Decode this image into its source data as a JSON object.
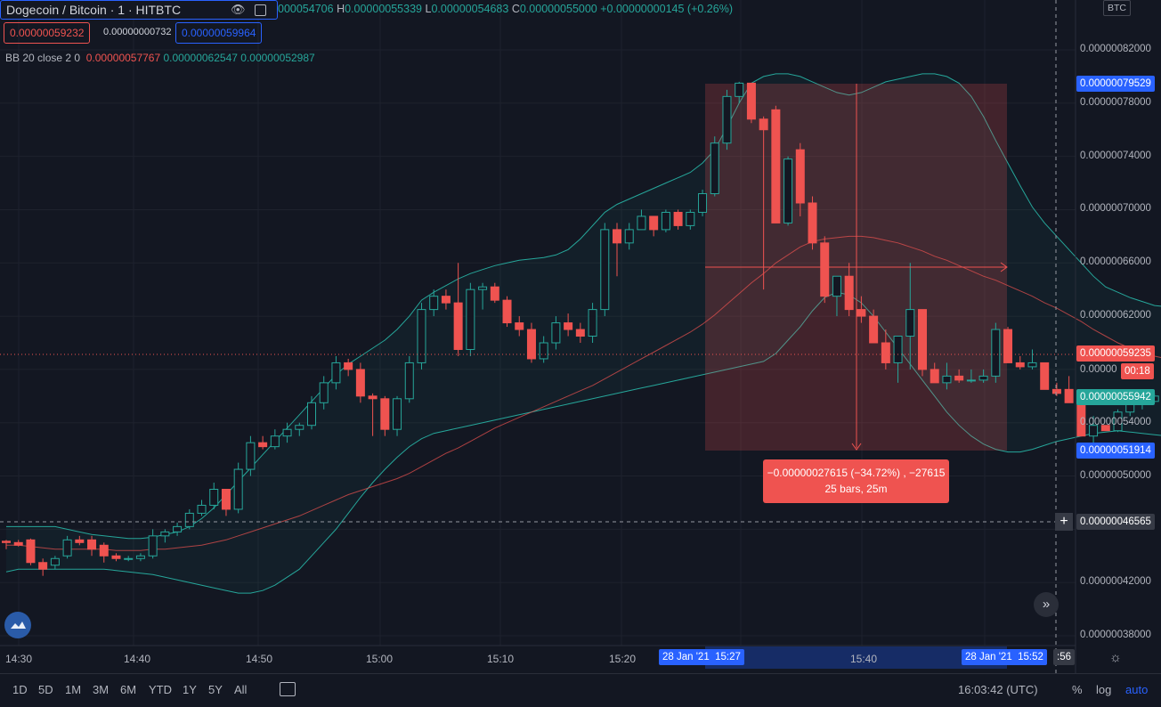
{
  "header": {
    "title": "Dogecoin / Bitcoin · 1 · HITBTC",
    "ohlc_prefix": "000054706",
    "h_label": "H",
    "h_value": "0.00000055339",
    "l_label": "L",
    "l_value": "0.00000054683",
    "c_label": "C",
    "c_value": "0.00000055000",
    "change": "+0.00000000145 (+0.26%)",
    "sell_price": "0.00000059232",
    "spread": "0.00000000732",
    "buy_price": "0.00000059964"
  },
  "indicator": {
    "label": "BB 20 close 2 0",
    "basis": "0.00000057767",
    "upper": "0.00000062547",
    "lower": "0.00000052987"
  },
  "colors": {
    "up": "#26a69a",
    "down": "#ef5350",
    "bg": "#131722",
    "grid": "#1e222d",
    "accent": "#2962ff"
  },
  "price_axis": {
    "currency": "BTC",
    "labels": [
      "0.00000082000",
      "0.00000078000",
      "0.00000074000",
      "0.00000070000",
      "0.00000066000",
      "0.00000062000",
      "0.00000054000",
      "0.00000050000",
      "0.00000042000",
      "0.00000038000"
    ],
    "tags": {
      "high": "0.00000079529",
      "last": "0.00000059235",
      "last_partial": "0.00000",
      "countdown": "00:18",
      "current": "0.00000055942",
      "low": "0.00000051914",
      "cursor": "0.00000046565"
    }
  },
  "time_axis": {
    "labels": [
      "14:30",
      "14:40",
      "14:50",
      "15:00",
      "15:10",
      "15:20",
      "15:40"
    ],
    "start_tag": "28 Jan '21  15:27",
    "end_tag": "28 Jan '21  15:52",
    "end_suffix": ":56"
  },
  "measure": {
    "line1": "−0.00000027615 (−34.72%) , −27615",
    "line2": "25 bars, 25m"
  },
  "bottom": {
    "timeframes": [
      "1D",
      "5D",
      "1M",
      "3M",
      "6M",
      "YTD",
      "1Y",
      "5Y",
      "All"
    ],
    "clock": "16:03:42 (UTC)",
    "pct": "%",
    "log": "log",
    "auto": "auto"
  },
  "chart_data": {
    "type": "candlestick",
    "y_range": [
      3.7e-08,
      8.35e-08
    ],
    "bars": [
      [
        4.51,
        4.52,
        4.45,
        4.5
      ],
      [
        4.5,
        4.52,
        4.47,
        4.48
      ],
      [
        4.52,
        4.53,
        4.33,
        4.35
      ],
      [
        4.35,
        4.38,
        4.25,
        4.3
      ],
      [
        4.33,
        4.4,
        4.3,
        4.38
      ],
      [
        4.4,
        4.55,
        4.38,
        4.52
      ],
      [
        4.52,
        4.55,
        4.48,
        4.5
      ],
      [
        4.52,
        4.55,
        4.4,
        4.45
      ],
      [
        4.48,
        4.5,
        4.35,
        4.4
      ],
      [
        4.4,
        4.42,
        4.36,
        4.38
      ],
      [
        4.38,
        4.4,
        4.36,
        4.38
      ],
      [
        4.38,
        4.42,
        4.36,
        4.4
      ],
      [
        4.4,
        4.6,
        4.38,
        4.55
      ],
      [
        4.55,
        4.6,
        4.5,
        4.58
      ],
      [
        4.58,
        4.65,
        4.55,
        4.62
      ],
      [
        4.62,
        4.75,
        4.6,
        4.72
      ],
      [
        4.72,
        4.82,
        4.7,
        4.78
      ],
      [
        4.78,
        4.95,
        4.75,
        4.9
      ],
      [
        4.9,
        4.85,
        4.7,
        4.75
      ],
      [
        4.75,
        5.1,
        4.72,
        5.05
      ],
      [
        5.05,
        5.3,
        5.0,
        5.25
      ],
      [
        5.25,
        5.3,
        5.2,
        5.22
      ],
      [
        5.22,
        5.35,
        5.2,
        5.3
      ],
      [
        5.3,
        5.4,
        5.25,
        5.35
      ],
      [
        5.35,
        5.4,
        5.3,
        5.38
      ],
      [
        5.38,
        5.6,
        5.35,
        5.55
      ],
      [
        5.55,
        5.75,
        5.5,
        5.7
      ],
      [
        5.7,
        5.9,
        5.65,
        5.85
      ],
      [
        5.85,
        5.88,
        5.75,
        5.8
      ],
      [
        5.8,
        5.85,
        5.55,
        5.6
      ],
      [
        5.6,
        5.62,
        5.3,
        5.58
      ],
      [
        5.58,
        5.6,
        5.3,
        5.35
      ],
      [
        5.35,
        5.6,
        5.3,
        5.58
      ],
      [
        5.58,
        5.9,
        5.55,
        5.85
      ],
      [
        5.85,
        6.3,
        5.8,
        6.25
      ],
      [
        6.25,
        6.4,
        6.2,
        6.35
      ],
      [
        6.35,
        6.4,
        6.25,
        6.3
      ],
      [
        6.3,
        6.6,
        5.9,
        5.95
      ],
      [
        5.95,
        6.45,
        5.9,
        6.4
      ],
      [
        6.4,
        6.45,
        6.25,
        6.42
      ],
      [
        6.42,
        6.45,
        6.3,
        6.32
      ],
      [
        6.32,
        6.35,
        6.12,
        6.15
      ],
      [
        6.15,
        6.2,
        6.05,
        6.1
      ],
      [
        6.1,
        6.15,
        5.85,
        5.88
      ],
      [
        5.88,
        6.05,
        5.85,
        6.0
      ],
      [
        6.0,
        6.2,
        5.95,
        6.15
      ],
      [
        6.15,
        6.22,
        6.05,
        6.1
      ],
      [
        6.1,
        6.15,
        6.0,
        6.05
      ],
      [
        6.05,
        6.3,
        6.0,
        6.25
      ],
      [
        6.25,
        6.9,
        6.2,
        6.85
      ],
      [
        6.85,
        6.9,
        6.5,
        6.75
      ],
      [
        6.75,
        6.9,
        6.7,
        6.85
      ],
      [
        6.85,
        7.0,
        6.85,
        6.95
      ],
      [
        6.95,
        6.95,
        6.8,
        6.85
      ],
      [
        6.85,
        7.0,
        6.83,
        6.98
      ],
      [
        6.98,
        7.0,
        6.85,
        6.88
      ],
      [
        6.88,
        7.0,
        6.85,
        6.98
      ],
      [
        6.98,
        7.15,
        6.95,
        7.12
      ],
      [
        7.12,
        7.55,
        7.1,
        7.5
      ],
      [
        7.5,
        7.9,
        7.45,
        7.85
      ],
      [
        7.85,
        7.96,
        7.8,
        7.95
      ],
      [
        7.95,
        7.95,
        7.65,
        7.68
      ],
      [
        7.68,
        7.7,
        6.4,
        7.6
      ],
      [
        7.75,
        7.78,
        6.9,
        6.9
      ],
      [
        6.9,
        7.4,
        6.88,
        7.38
      ],
      [
        7.45,
        7.5,
        6.95,
        7.05
      ],
      [
        7.05,
        7.1,
        6.7,
        6.75
      ],
      [
        6.75,
        6.8,
        6.3,
        6.35
      ],
      [
        6.35,
        6.5,
        6.2,
        6.5
      ],
      [
        6.5,
        6.6,
        6.2,
        6.25
      ],
      [
        6.25,
        6.35,
        6.15,
        6.2
      ],
      [
        6.2,
        6.25,
        6.0,
        6.0
      ],
      [
        6.0,
        6.1,
        5.8,
        5.85
      ],
      [
        5.85,
        5.95,
        5.7,
        6.05
      ],
      [
        6.05,
        6.6,
        5.8,
        6.25
      ],
      [
        6.25,
        6.25,
        5.75,
        5.8
      ],
      [
        5.8,
        5.85,
        5.7,
        5.7
      ],
      [
        5.7,
        5.85,
        5.65,
        5.75
      ],
      [
        5.75,
        5.8,
        5.7,
        5.72
      ],
      [
        5.72,
        5.8,
        5.7,
        5.72
      ],
      [
        5.72,
        5.8,
        5.7,
        5.75
      ],
      [
        5.75,
        6.15,
        5.7,
        6.1
      ],
      [
        6.1,
        6.12,
        5.85,
        5.85
      ],
      [
        5.85,
        5.9,
        5.8,
        5.82
      ],
      [
        5.82,
        5.95,
        5.8,
        5.85
      ],
      [
        5.85,
        5.85,
        5.65,
        5.65
      ],
      [
        5.65,
        5.7,
        5.6,
        5.62
      ],
      [
        5.65,
        5.75,
        5.55,
        5.55
      ],
      [
        5.55,
        5.6,
        5.3,
        5.3
      ],
      [
        5.3,
        5.45,
        5.19,
        5.38
      ],
      [
        5.38,
        5.38,
        5.34,
        5.34
      ],
      [
        5.34,
        5.5,
        5.33,
        5.48
      ],
      [
        5.48,
        5.65,
        5.45,
        5.55
      ],
      [
        5.55,
        5.6,
        5.5,
        5.56
      ],
      [
        5.56,
        5.62,
        5.55,
        5.6
      ]
    ],
    "bb_basis": [
      4.48,
      4.48,
      4.47,
      4.46,
      4.45,
      4.45,
      4.45,
      4.45,
      4.45,
      4.44,
      4.44,
      4.44,
      4.45,
      4.45,
      4.46,
      4.47,
      4.48,
      4.5,
      4.52,
      4.55,
      4.58,
      4.61,
      4.64,
      4.67,
      4.7,
      4.74,
      4.78,
      4.82,
      4.86,
      4.89,
      4.92,
      4.95,
      4.98,
      5.02,
      5.07,
      5.12,
      5.17,
      5.21,
      5.26,
      5.31,
      5.36,
      5.4,
      5.44,
      5.48,
      5.52,
      5.56,
      5.6,
      5.64,
      5.68,
      5.73,
      5.78,
      5.83,
      5.88,
      5.93,
      5.98,
      6.03,
      6.08,
      6.14,
      6.21,
      6.29,
      6.37,
      6.45,
      6.52,
      6.6,
      6.66,
      6.72,
      6.76,
      6.78,
      6.79,
      6.8,
      6.8,
      6.79,
      6.77,
      6.75,
      6.72,
      6.69,
      6.65,
      6.62,
      6.58,
      6.54,
      6.5,
      6.47,
      6.43,
      6.39,
      6.35,
      6.3,
      6.26,
      6.21,
      6.16,
      6.1,
      6.05,
      6.0,
      5.96,
      5.92,
      5.9,
      5.88
    ],
    "bb_upper": [
      4.62,
      4.62,
      4.62,
      4.62,
      4.62,
      4.6,
      4.58,
      4.56,
      4.55,
      4.54,
      4.53,
      4.53,
      4.54,
      4.56,
      4.58,
      4.62,
      4.68,
      4.76,
      4.86,
      4.96,
      5.06,
      5.16,
      5.26,
      5.36,
      5.46,
      5.56,
      5.66,
      5.76,
      5.84,
      5.9,
      5.96,
      6.02,
      6.1,
      6.2,
      6.32,
      6.38,
      6.43,
      6.48,
      6.52,
      6.55,
      6.58,
      6.6,
      6.62,
      6.63,
      6.64,
      6.66,
      6.7,
      6.78,
      6.88,
      6.98,
      7.04,
      7.08,
      7.12,
      7.16,
      7.2,
      7.24,
      7.28,
      7.35,
      7.45,
      7.62,
      7.8,
      7.95,
      8.0,
      8.02,
      8.02,
      8.0,
      7.96,
      7.92,
      7.88,
      7.86,
      7.88,
      7.92,
      7.96,
      7.98,
      8.0,
      8.02,
      8.02,
      8.0,
      7.95,
      7.85,
      7.7,
      7.52,
      7.35,
      7.18,
      7.02,
      6.9,
      6.8,
      6.7,
      6.6,
      6.5,
      6.42,
      6.38,
      6.34,
      6.31,
      6.28,
      6.27
    ],
    "bb_lower": [
      4.28,
      4.3,
      4.3,
      4.3,
      4.3,
      4.3,
      4.3,
      4.3,
      4.3,
      4.29,
      4.28,
      4.27,
      4.26,
      4.24,
      4.22,
      4.2,
      4.18,
      4.16,
      4.14,
      4.12,
      4.12,
      4.14,
      4.18,
      4.24,
      4.3,
      4.4,
      4.5,
      4.6,
      4.72,
      4.84,
      4.95,
      5.05,
      5.14,
      5.22,
      5.28,
      5.32,
      5.34,
      5.36,
      5.38,
      5.4,
      5.42,
      5.44,
      5.46,
      5.48,
      5.5,
      5.52,
      5.54,
      5.56,
      5.58,
      5.6,
      5.62,
      5.64,
      5.66,
      5.68,
      5.7,
      5.72,
      5.74,
      5.76,
      5.78,
      5.8,
      5.82,
      5.84,
      5.86,
      5.92,
      6.02,
      6.12,
      6.24,
      6.34,
      6.38,
      6.36,
      6.3,
      6.2,
      6.08,
      5.96,
      5.84,
      5.72,
      5.6,
      5.48,
      5.38,
      5.3,
      5.24,
      5.2,
      5.18,
      5.18,
      5.2,
      5.23,
      5.26,
      5.28,
      5.3,
      5.32,
      5.33,
      5.34,
      5.33,
      5.32,
      5.31,
      5.3
    ]
  }
}
